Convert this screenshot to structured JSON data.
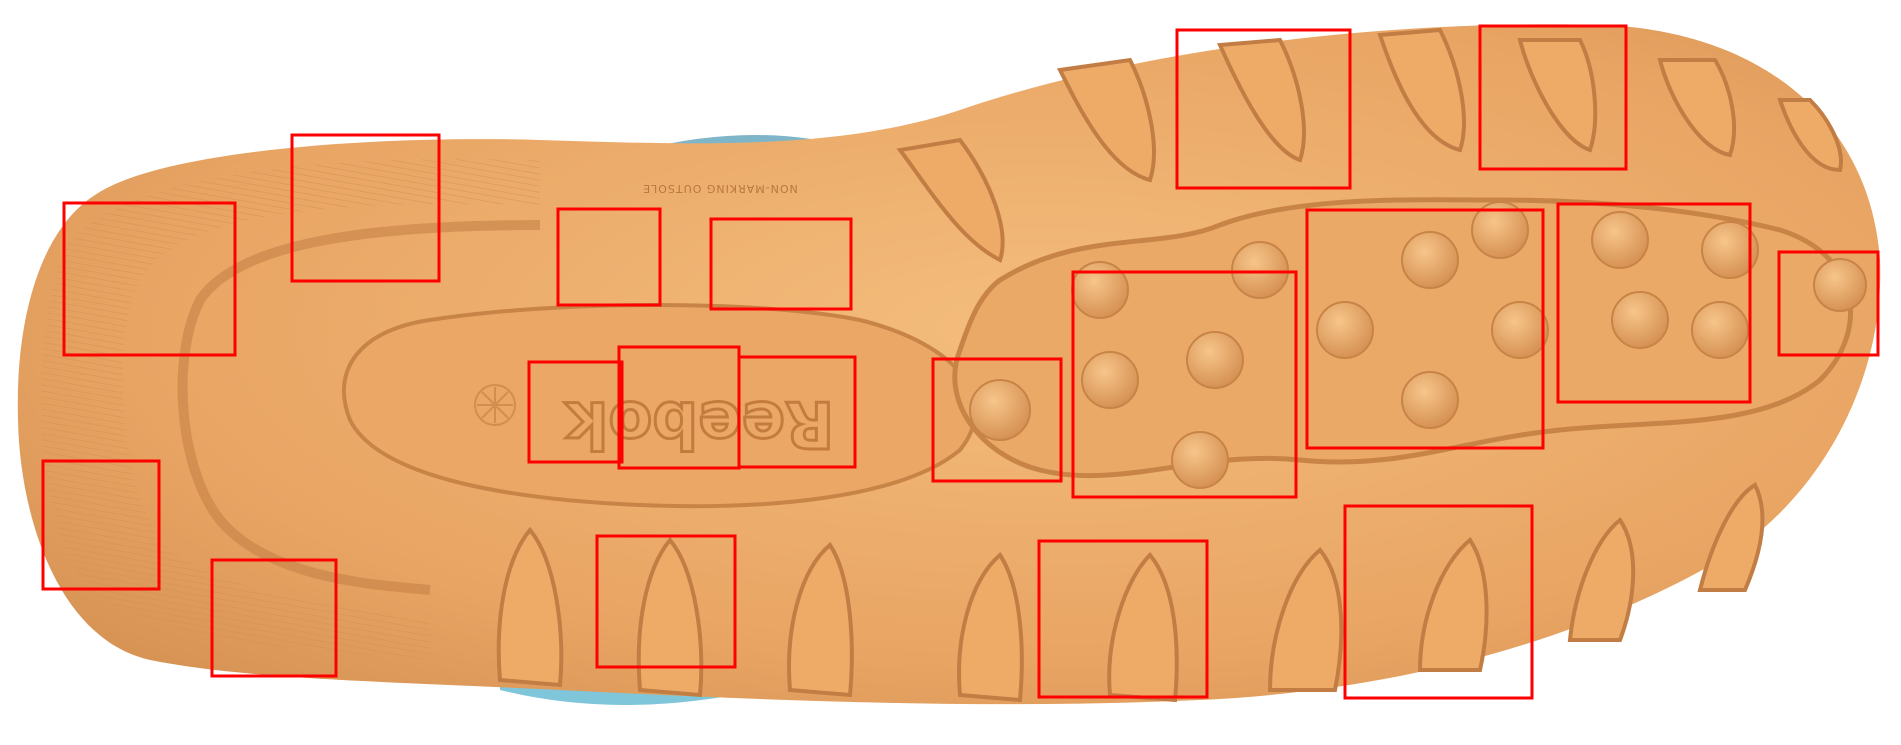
{
  "image": {
    "kind": "photo",
    "subject": "shoe-outsole"
  },
  "outsole": {
    "brand_text": "Reebok",
    "note_text": "NON-MARKING OUTSOLE"
  },
  "colors": {
    "gum": "#e8a463",
    "gum_light": "#f2b977",
    "gum_dark": "#c9834a",
    "upper": "#7fb5c8",
    "box": "#ff0000"
  }
}
